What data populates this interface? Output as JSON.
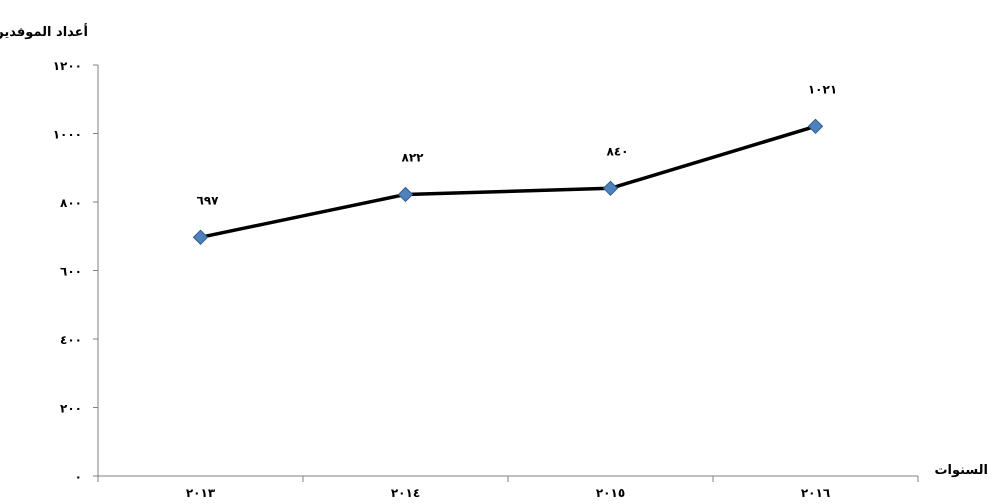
{
  "chart_data": {
    "type": "line",
    "title": "",
    "ylabel": "أعداد الموفدين",
    "xlabel": "السنوات",
    "categories": [
      "٢٠١٣",
      "٢٠١٤",
      "٢٠١٥",
      "٢٠١٦"
    ],
    "series": [
      {
        "values": [
          697,
          822,
          840,
          1021
        ]
      }
    ],
    "data_labels": [
      "٦٩٧",
      "٨٢٢",
      "٨٤٠",
      "١٠٢١"
    ],
    "ylim": [
      0,
      1200
    ],
    "yticks": [
      0,
      200,
      400,
      600,
      800,
      1000,
      1200
    ],
    "ytick_labels": [
      "٠",
      "٢٠٠",
      "٤٠٠",
      "٦٠٠",
      "٨٠٠",
      "١٠٠٠",
      "١٢٠٠"
    ],
    "grid": false,
    "legend": "none",
    "colors": {
      "line": "#000000",
      "marker": "#4F81BD",
      "marker_edge": "#2E5C8A",
      "axis": "#808080"
    }
  }
}
